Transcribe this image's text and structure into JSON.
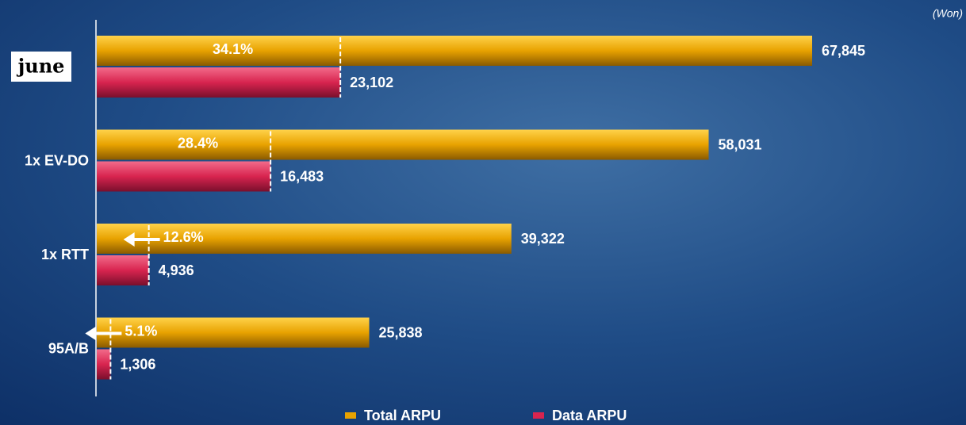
{
  "chart_data": {
    "type": "hbar",
    "unit": "(Won)",
    "categories": [
      "june",
      "1x EV-DO",
      "1x RTT",
      "95A/B"
    ],
    "series": [
      {
        "name": "Total ARPU",
        "color": "#e8a200",
        "values": [
          67845,
          58031,
          39322,
          25838
        ],
        "value_labels": [
          "67,845",
          "58,031",
          "39,322",
          "25,838"
        ]
      },
      {
        "name": "Data ARPU",
        "color": "#d8244f",
        "values": [
          23102,
          16483,
          4936,
          1306
        ],
        "value_labels": [
          "23,102",
          "16,483",
          "4,936",
          "1,306"
        ]
      }
    ],
    "ratio": {
      "values": [
        34.1,
        28.4,
        12.6,
        5.1
      ],
      "value_labels": [
        "34.1%",
        "28.4%",
        "12.6%",
        "5.1%"
      ]
    }
  }
}
